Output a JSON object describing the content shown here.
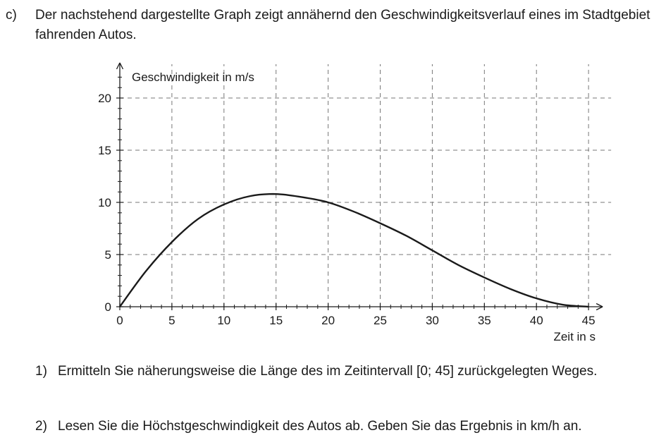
{
  "task": {
    "label": "c)",
    "intro": "Der nachstehend dargestellte Graph zeigt annähernd den Geschwindigkeitsverlauf eines im Stadtgebiet fahrenden Autos."
  },
  "chart_data": {
    "type": "line",
    "title": "",
    "xlabel": "Zeit in s",
    "ylabel": "Geschwindigkeit in m/s",
    "xlim": [
      0,
      45
    ],
    "ylim": [
      0,
      20
    ],
    "x_ticks": [
      0,
      5,
      10,
      15,
      20,
      25,
      30,
      35,
      40,
      45
    ],
    "y_ticks": [
      0,
      5,
      10,
      15,
      20
    ],
    "grid": true,
    "grid_style": "dashed",
    "series": [
      {
        "x": [
          0,
          2.5,
          5,
          7.5,
          10,
          12.5,
          15,
          17.5,
          20,
          22.5,
          25,
          27.5,
          30,
          32.5,
          35,
          37.5,
          40,
          42.5,
          45
        ],
        "y": [
          0,
          3.4,
          6.2,
          8.4,
          9.8,
          10.6,
          10.8,
          10.5,
          10.0,
          9.1,
          8.0,
          6.8,
          5.4,
          4.0,
          2.8,
          1.7,
          0.8,
          0.2,
          0
        ]
      }
    ]
  },
  "questions": [
    {
      "number": "1)",
      "text": "Ermitteln Sie näherungsweise die Länge des im Zeitintervall [0; 45] zurückgelegten Weges."
    },
    {
      "number": "2)",
      "text": "Lesen Sie die Höchstgeschwindigkeit des Autos ab. Geben Sie das Ergebnis in km/h an."
    }
  ]
}
